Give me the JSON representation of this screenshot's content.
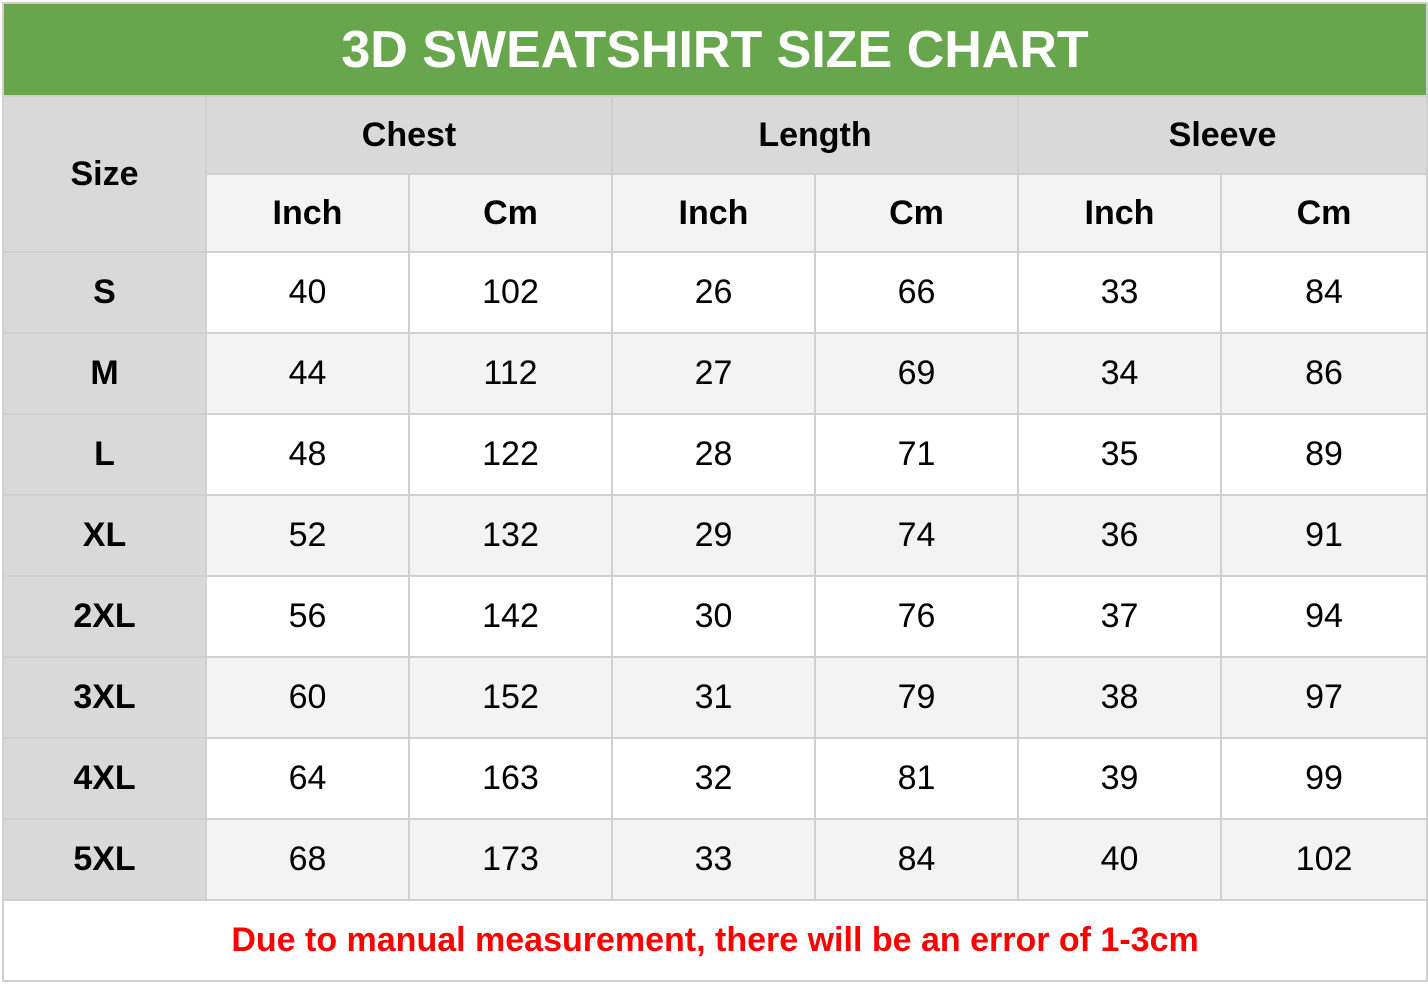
{
  "title": "3D SWEATSHIRT SIZE CHART",
  "header": {
    "size": "Size",
    "groups": [
      "Chest",
      "Length",
      "Sleeve"
    ],
    "units": [
      "Inch",
      "Cm",
      "Inch",
      "Cm",
      "Inch",
      "Cm"
    ]
  },
  "rows": [
    {
      "size": "S",
      "values": [
        "40",
        "102",
        "26",
        "66",
        "33",
        "84"
      ]
    },
    {
      "size": "M",
      "values": [
        "44",
        "112",
        "27",
        "69",
        "34",
        "86"
      ]
    },
    {
      "size": "L",
      "values": [
        "48",
        "122",
        "28",
        "71",
        "35",
        "89"
      ]
    },
    {
      "size": "XL",
      "values": [
        "52",
        "132",
        "29",
        "74",
        "36",
        "91"
      ]
    },
    {
      "size": "2XL",
      "values": [
        "56",
        "142",
        "30",
        "76",
        "37",
        "94"
      ]
    },
    {
      "size": "3XL",
      "values": [
        "60",
        "152",
        "31",
        "79",
        "38",
        "97"
      ]
    },
    {
      "size": "4XL",
      "values": [
        "64",
        "163",
        "32",
        "81",
        "39",
        "99"
      ]
    },
    {
      "size": "5XL",
      "values": [
        "68",
        "173",
        "33",
        "84",
        "40",
        "102"
      ]
    }
  ],
  "note": "Due to manual measurement, there will be an error of 1-3cm",
  "colors": {
    "title_bg": "#67a64d",
    "note_text": "#ff0000",
    "header_bg": "#d9d9d9",
    "alt_row_bg": "#f3f3f3"
  }
}
